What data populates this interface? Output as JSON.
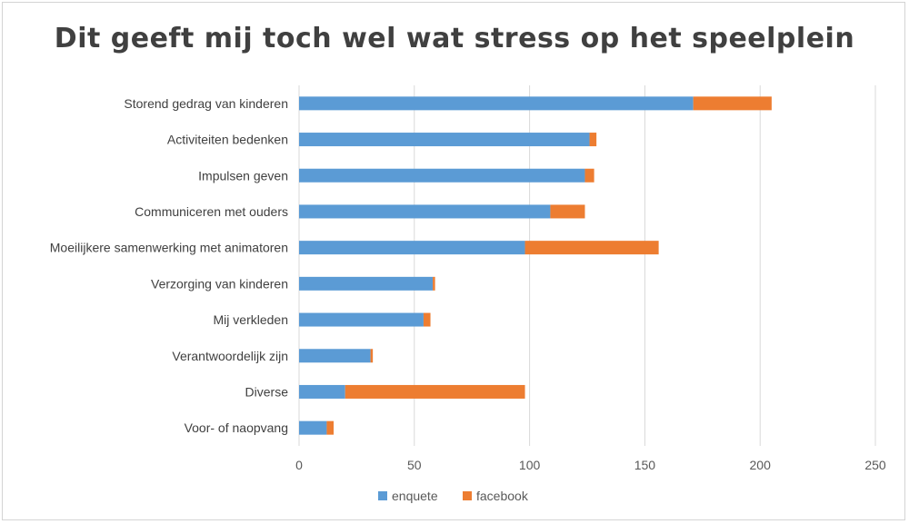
{
  "chart_data": {
    "type": "bar",
    "orientation": "horizontal",
    "stacked": true,
    "title": "Dit geeft mij toch wel wat stress op het speelplein",
    "categories": [
      "Storend gedrag van kinderen",
      "Activiteiten bedenken",
      "Impulsen geven",
      "Communiceren met ouders",
      "Moeilijkere samenwerking met animatoren",
      "Verzorging van kinderen",
      "Mij verkleden",
      "Verantwoordelijk zijn",
      "Diverse",
      "Voor- of naopvang"
    ],
    "series": [
      {
        "name": "enquete",
        "color": "#5b9bd5",
        "values": [
          171,
          126,
          124,
          109,
          98,
          58,
          54,
          31,
          20,
          12
        ]
      },
      {
        "name": "facebook",
        "color": "#ed7d31",
        "values": [
          34,
          3,
          4,
          15,
          58,
          1,
          3,
          1,
          78,
          3
        ]
      }
    ],
    "xlim": [
      0,
      250
    ],
    "xticks": [
      "0",
      "50",
      "100",
      "150",
      "200",
      "250"
    ],
    "grid": true,
    "legend_position": "bottom"
  }
}
